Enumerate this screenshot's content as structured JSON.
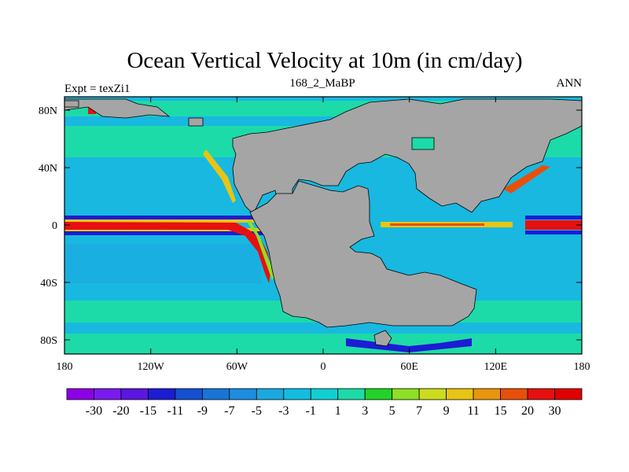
{
  "title": "Ocean Vertical Velocity at 10m (in cm/day)",
  "left_label": "Expt = texZi1",
  "center_label": "168_2_MaBP",
  "right_label": "ANN",
  "x_ticks": [
    "180",
    "120W",
    "60W",
    "0",
    "60E",
    "120E",
    "180"
  ],
  "y_ticks": [
    "80N",
    "40N",
    "0",
    "40S",
    "80S"
  ],
  "colorbar": {
    "labels": [
      "-30",
      "-20",
      "-15",
      "-11",
      "-9",
      "-7",
      "-5",
      "-3",
      "-1",
      "1",
      "3",
      "5",
      "7",
      "9",
      "11",
      "15",
      "20",
      "30"
    ],
    "colors": [
      "#8c00e6",
      "#7a1aee",
      "#5a16e0",
      "#1c1cd4",
      "#1450d2",
      "#1874d6",
      "#1c8de0",
      "#1aa8e0",
      "#12bde0",
      "#10cfd2",
      "#1cdba8",
      "#22d228",
      "#8ee024",
      "#ccdc1c",
      "#e8c414",
      "#e8960c",
      "#e8500a",
      "#e61010",
      "#e00000"
    ]
  },
  "map_colors": {
    "land": "#a5a5a5",
    "ocean": "#18b8e0",
    "mid_lat": "#1cdba8",
    "south": "#1aa8e0",
    "strong_up": "#e61010",
    "up_edge": "#e8c414",
    "green_edge": "#8ee024",
    "strong_down": "#1c1cd4"
  }
}
